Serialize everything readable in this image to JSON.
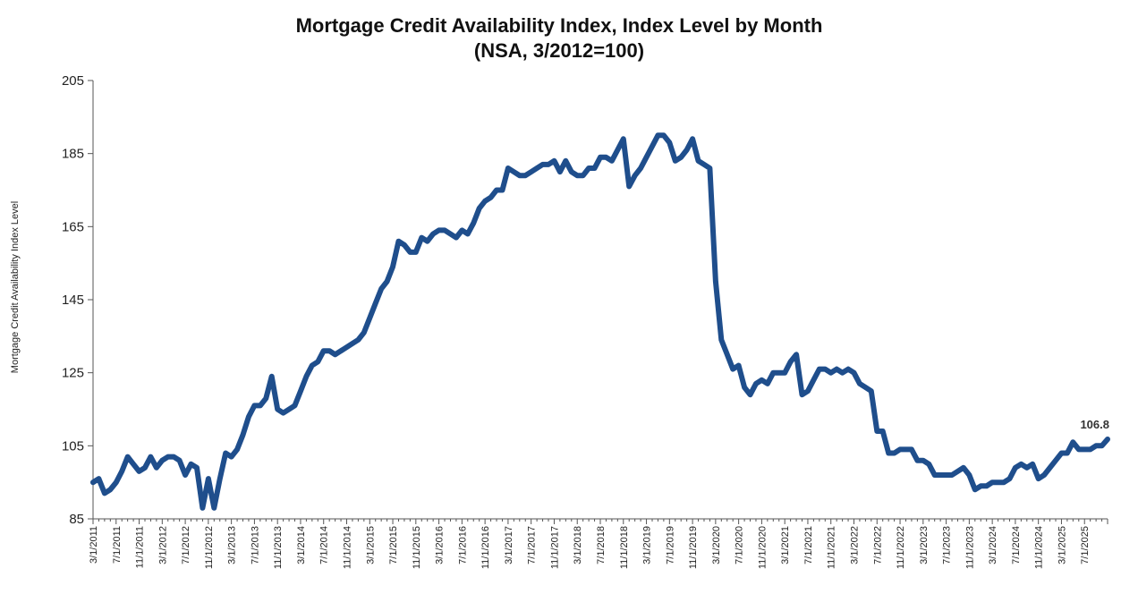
{
  "chart_data": {
    "type": "line",
    "title": "Mortgage Credit Availability Index, Index Level by Month",
    "subtitle": "(NSA, 3/2012=100)",
    "xlabel": "",
    "ylabel": "Mortgage Credit Availability Index Level",
    "ylim": [
      85,
      205
    ],
    "yticks": [
      85,
      105,
      125,
      145,
      165,
      185,
      205
    ],
    "xlim": [
      0,
      176
    ],
    "xticks": [
      {
        "x": 0,
        "label": "3/1/2011"
      },
      {
        "x": 4,
        "label": "7/1/2011"
      },
      {
        "x": 8,
        "label": "11/1/2011"
      },
      {
        "x": 12,
        "label": "3/1/2012"
      },
      {
        "x": 16,
        "label": "7/1/2012"
      },
      {
        "x": 20,
        "label": "11/1/2012"
      },
      {
        "x": 24,
        "label": "3/1/2013"
      },
      {
        "x": 28,
        "label": "7/1/2013"
      },
      {
        "x": 32,
        "label": "11/1/2013"
      },
      {
        "x": 36,
        "label": "3/1/2014"
      },
      {
        "x": 40,
        "label": "7/1/2014"
      },
      {
        "x": 44,
        "label": "11/1/2014"
      },
      {
        "x": 48,
        "label": "3/1/2015"
      },
      {
        "x": 52,
        "label": "7/1/2015"
      },
      {
        "x": 56,
        "label": "11/1/2015"
      },
      {
        "x": 60,
        "label": "3/1/2016"
      },
      {
        "x": 64,
        "label": "7/1/2016"
      },
      {
        "x": 68,
        "label": "11/1/2016"
      },
      {
        "x": 72,
        "label": "3/1/2017"
      },
      {
        "x": 76,
        "label": "7/1/2017"
      },
      {
        "x": 80,
        "label": "11/1/2017"
      },
      {
        "x": 84,
        "label": "3/1/2018"
      },
      {
        "x": 88,
        "label": "7/1/2018"
      },
      {
        "x": 92,
        "label": "11/1/2018"
      },
      {
        "x": 96,
        "label": "3/1/2019"
      },
      {
        "x": 100,
        "label": "7/1/2019"
      },
      {
        "x": 104,
        "label": "11/1/2019"
      },
      {
        "x": 108,
        "label": "3/1/2020"
      },
      {
        "x": 112,
        "label": "7/1/2020"
      },
      {
        "x": 116,
        "label": "11/1/2020"
      },
      {
        "x": 120,
        "label": "3/1/2021"
      },
      {
        "x": 124,
        "label": "7/1/2021"
      },
      {
        "x": 128,
        "label": "11/1/2021"
      },
      {
        "x": 132,
        "label": "3/1/2022"
      },
      {
        "x": 136,
        "label": "7/1/2022"
      },
      {
        "x": 140,
        "label": "11/1/2022"
      },
      {
        "x": 144,
        "label": "3/1/2023"
      },
      {
        "x": 148,
        "label": "7/1/2023"
      },
      {
        "x": 152,
        "label": "11/1/2023"
      },
      {
        "x": 156,
        "label": "3/1/2024"
      },
      {
        "x": 160,
        "label": "7/1/2024"
      },
      {
        "x": 164,
        "label": "11/1/2024"
      },
      {
        "x": 168,
        "label": "3/1/2025"
      },
      {
        "x": 172,
        "label": "7/1/2025"
      }
    ],
    "series": [
      {
        "name": "Mortgage Credit Availability Index",
        "color": "#1f4e8c",
        "points": [
          [
            0,
            95
          ],
          [
            1,
            96
          ],
          [
            2,
            92
          ],
          [
            3,
            93
          ],
          [
            4,
            95
          ],
          [
            5,
            98
          ],
          [
            6,
            102
          ],
          [
            7,
            100
          ],
          [
            8,
            98
          ],
          [
            9,
            99
          ],
          [
            10,
            102
          ],
          [
            11,
            99
          ],
          [
            12,
            101
          ],
          [
            13,
            102
          ],
          [
            14,
            102
          ],
          [
            15,
            101
          ],
          [
            16,
            97
          ],
          [
            17,
            100
          ],
          [
            18,
            99
          ],
          [
            19,
            88
          ],
          [
            20,
            96
          ],
          [
            21,
            88
          ],
          [
            22,
            96
          ],
          [
            23,
            103
          ],
          [
            24,
            102
          ],
          [
            25,
            104
          ],
          [
            26,
            108
          ],
          [
            27,
            113
          ],
          [
            28,
            116
          ],
          [
            29,
            116
          ],
          [
            30,
            118
          ],
          [
            31,
            124
          ],
          [
            32,
            115
          ],
          [
            33,
            114
          ],
          [
            34,
            115
          ],
          [
            35,
            116
          ],
          [
            36,
            120
          ],
          [
            37,
            124
          ],
          [
            38,
            127
          ],
          [
            39,
            128
          ],
          [
            40,
            131
          ],
          [
            41,
            131
          ],
          [
            42,
            130
          ],
          [
            43,
            131
          ],
          [
            44,
            132
          ],
          [
            45,
            133
          ],
          [
            46,
            134
          ],
          [
            47,
            136
          ],
          [
            48,
            140
          ],
          [
            49,
            144
          ],
          [
            50,
            148
          ],
          [
            51,
            150
          ],
          [
            52,
            154
          ],
          [
            53,
            161
          ],
          [
            54,
            160
          ],
          [
            55,
            158
          ],
          [
            56,
            158
          ],
          [
            57,
            162
          ],
          [
            58,
            161
          ],
          [
            59,
            163
          ],
          [
            60,
            164
          ],
          [
            61,
            164
          ],
          [
            62,
            163
          ],
          [
            63,
            162
          ],
          [
            64,
            164
          ],
          [
            65,
            163
          ],
          [
            66,
            166
          ],
          [
            67,
            170
          ],
          [
            68,
            172
          ],
          [
            69,
            173
          ],
          [
            70,
            175
          ],
          [
            71,
            175
          ],
          [
            72,
            181
          ],
          [
            73,
            180
          ],
          [
            74,
            179
          ],
          [
            75,
            179
          ],
          [
            76,
            180
          ],
          [
            77,
            181
          ],
          [
            78,
            182
          ],
          [
            79,
            182
          ],
          [
            80,
            183
          ],
          [
            81,
            180
          ],
          [
            82,
            183
          ],
          [
            83,
            180
          ],
          [
            84,
            179
          ],
          [
            85,
            179
          ],
          [
            86,
            181
          ],
          [
            87,
            181
          ],
          [
            88,
            184
          ],
          [
            89,
            184
          ],
          [
            90,
            183
          ],
          [
            91,
            186
          ],
          [
            92,
            189
          ],
          [
            93,
            176
          ],
          [
            94,
            179
          ],
          [
            95,
            181
          ],
          [
            96,
            184
          ],
          [
            97,
            187
          ],
          [
            98,
            190
          ],
          [
            99,
            190
          ],
          [
            100,
            188
          ],
          [
            101,
            183
          ],
          [
            102,
            184
          ],
          [
            103,
            186
          ],
          [
            104,
            189
          ],
          [
            105,
            183
          ],
          [
            106,
            182
          ],
          [
            107,
            181
          ],
          [
            108,
            150
          ],
          [
            109,
            134
          ],
          [
            110,
            130
          ],
          [
            111,
            126
          ],
          [
            112,
            127
          ],
          [
            113,
            121
          ],
          [
            114,
            119
          ],
          [
            115,
            122
          ],
          [
            116,
            123
          ],
          [
            117,
            122
          ],
          [
            118,
            125
          ],
          [
            119,
            125
          ],
          [
            120,
            125
          ],
          [
            121,
            128
          ],
          [
            122,
            130
          ],
          [
            123,
            119
          ],
          [
            124,
            120
          ],
          [
            125,
            123
          ],
          [
            126,
            126
          ],
          [
            127,
            126
          ],
          [
            128,
            125
          ],
          [
            129,
            126
          ],
          [
            130,
            125
          ],
          [
            131,
            126
          ],
          [
            132,
            125
          ],
          [
            133,
            122
          ],
          [
            134,
            121
          ],
          [
            135,
            120
          ],
          [
            136,
            109
          ],
          [
            137,
            109
          ],
          [
            138,
            103
          ],
          [
            139,
            103
          ],
          [
            140,
            104
          ],
          [
            141,
            104
          ],
          [
            142,
            104
          ],
          [
            143,
            101
          ],
          [
            144,
            101
          ],
          [
            145,
            100
          ],
          [
            146,
            97
          ],
          [
            147,
            97
          ],
          [
            148,
            97
          ],
          [
            149,
            97
          ],
          [
            150,
            98
          ],
          [
            151,
            99
          ],
          [
            152,
            97
          ],
          [
            153,
            93
          ],
          [
            154,
            94
          ],
          [
            155,
            94
          ],
          [
            156,
            95
          ],
          [
            157,
            95
          ],
          [
            158,
            95
          ],
          [
            159,
            96
          ],
          [
            160,
            99
          ],
          [
            161,
            100
          ],
          [
            162,
            99
          ],
          [
            163,
            100
          ],
          [
            164,
            96
          ],
          [
            165,
            97
          ],
          [
            166,
            99
          ],
          [
            167,
            101
          ],
          [
            168,
            103
          ],
          [
            169,
            103
          ],
          [
            170,
            106
          ],
          [
            171,
            104
          ],
          [
            172,
            104
          ],
          [
            173,
            104
          ],
          [
            174,
            105
          ],
          [
            175,
            105
          ],
          [
            176,
            106.8
          ]
        ]
      }
    ],
    "annotations": [
      {
        "x": 176,
        "y": 106.8,
        "text": "106.8"
      }
    ],
    "grid": false,
    "legend": "none"
  }
}
